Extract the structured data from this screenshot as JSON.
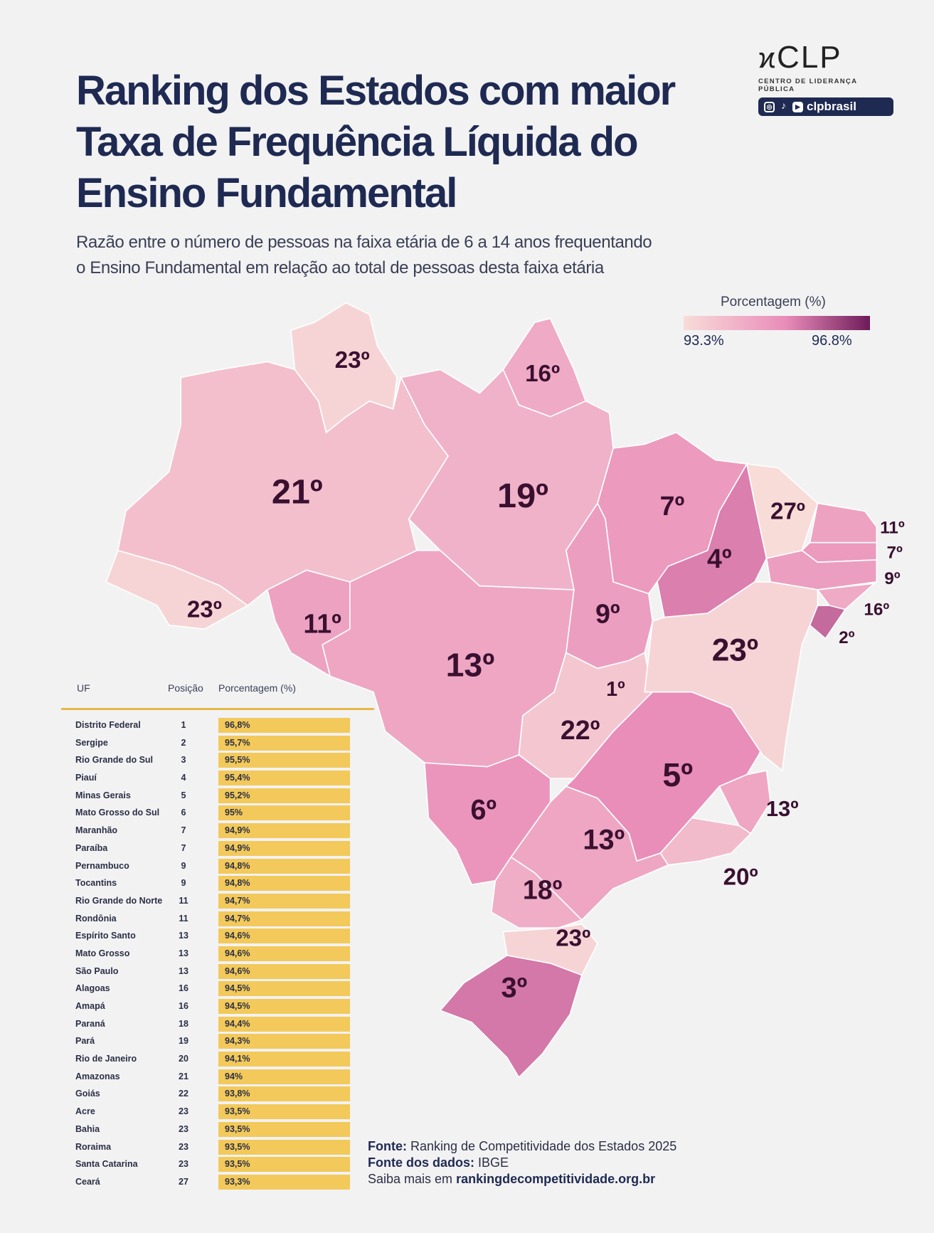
{
  "title_lines": [
    "Ranking dos Estados com maior",
    "Taxa de Frequência Líquida do",
    "Ensino Fundamental"
  ],
  "subtitle_lines": [
    "Razão entre o número de pessoas na faixa etária de 6 a 14 anos frequentando",
    "o Ensino Fundamental em relação ao total de pessoas desta faixa etária"
  ],
  "logo": {
    "text": "CLP",
    "org": "CENTRO DE LIDERANÇA PÚBLICA",
    "handle": "clpbrasil",
    "icons": [
      "instagram-icon",
      "tiktok-icon",
      "youtube-icon"
    ]
  },
  "legend": {
    "title": "Porcentagem (%)",
    "min_label": "93.3%",
    "max_label": "96.8%",
    "min_color": "#f8dcd8",
    "mid_color": "#e98cb9",
    "max_color": "#6d1b5a"
  },
  "table": {
    "headers": [
      "UF",
      "Posição",
      "Porcentagem (%)"
    ],
    "bar_color": "#f2c95a",
    "header_line_color": "#e8b948"
  },
  "footer": {
    "source_label": "Fonte:",
    "source": "Ranking de Competitividade dos Estados 2025",
    "data_label": "Fonte dos dados:",
    "data_source": "IBGE",
    "more_prefix": "Saiba mais em",
    "more_link": "rankingdecompetitividade.org.br"
  },
  "chart_data": {
    "type": "table",
    "title": "Ranking dos Estados com maior Taxa de Frequência Líquida do Ensino Fundamental",
    "columns": [
      "UF",
      "Posição",
      "Porcentagem (%)"
    ],
    "rows": [
      {
        "uf": "Distrito Federal",
        "code": "DF",
        "rank": 1,
        "pct": 96.8,
        "pct_label": "96,8%",
        "map_label": "1º"
      },
      {
        "uf": "Sergipe",
        "code": "SE",
        "rank": 2,
        "pct": 95.7,
        "pct_label": "95,7%",
        "map_label": "2º"
      },
      {
        "uf": "Rio Grande do Sul",
        "code": "RS",
        "rank": 3,
        "pct": 95.5,
        "pct_label": "95,5%",
        "map_label": "3º"
      },
      {
        "uf": "Piauí",
        "code": "PI",
        "rank": 4,
        "pct": 95.4,
        "pct_label": "95,4%",
        "map_label": "4º"
      },
      {
        "uf": "Minas Gerais",
        "code": "MG",
        "rank": 5,
        "pct": 95.2,
        "pct_label": "95,2%",
        "map_label": "5º"
      },
      {
        "uf": "Mato Grosso do Sul",
        "code": "MS",
        "rank": 6,
        "pct": 95.0,
        "pct_label": "95%",
        "map_label": "6º"
      },
      {
        "uf": "Maranhão",
        "code": "MA",
        "rank": 7,
        "pct": 94.9,
        "pct_label": "94,9%",
        "map_label": "7º"
      },
      {
        "uf": "Paraíba",
        "code": "PB",
        "rank": 7,
        "pct": 94.9,
        "pct_label": "94,9%",
        "map_label": "7º"
      },
      {
        "uf": "Pernambuco",
        "code": "PE",
        "rank": 9,
        "pct": 94.8,
        "pct_label": "94,8%",
        "map_label": "9º"
      },
      {
        "uf": "Tocantins",
        "code": "TO",
        "rank": 9,
        "pct": 94.8,
        "pct_label": "94,8%",
        "map_label": "9º"
      },
      {
        "uf": "Rio Grande do Norte",
        "code": "RN",
        "rank": 11,
        "pct": 94.7,
        "pct_label": "94,7%",
        "map_label": "11º"
      },
      {
        "uf": "Rondônia",
        "code": "RO",
        "rank": 11,
        "pct": 94.7,
        "pct_label": "94,7%",
        "map_label": "11º"
      },
      {
        "uf": "Espírito Santo",
        "code": "ES",
        "rank": 13,
        "pct": 94.6,
        "pct_label": "94,6%",
        "map_label": "13º"
      },
      {
        "uf": "Mato Grosso",
        "code": "MT",
        "rank": 13,
        "pct": 94.6,
        "pct_label": "94,6%",
        "map_label": "13º"
      },
      {
        "uf": "São Paulo",
        "code": "SP",
        "rank": 13,
        "pct": 94.6,
        "pct_label": "94,6%",
        "map_label": "13º"
      },
      {
        "uf": "Alagoas",
        "code": "AL",
        "rank": 16,
        "pct": 94.5,
        "pct_label": "94,5%",
        "map_label": "16º"
      },
      {
        "uf": "Amapá",
        "code": "AP",
        "rank": 16,
        "pct": 94.5,
        "pct_label": "94,5%",
        "map_label": "16º"
      },
      {
        "uf": "Paraná",
        "code": "PR",
        "rank": 18,
        "pct": 94.4,
        "pct_label": "94,4%",
        "map_label": "18º"
      },
      {
        "uf": "Pará",
        "code": "PA",
        "rank": 19,
        "pct": 94.3,
        "pct_label": "94,3%",
        "map_label": "19º"
      },
      {
        "uf": "Rio de Janeiro",
        "code": "RJ",
        "rank": 20,
        "pct": 94.1,
        "pct_label": "94,1%",
        "map_label": "20º"
      },
      {
        "uf": "Amazonas",
        "code": "AM",
        "rank": 21,
        "pct": 94.0,
        "pct_label": "94%",
        "map_label": "21º"
      },
      {
        "uf": "Goiás",
        "code": "GO",
        "rank": 22,
        "pct": 93.8,
        "pct_label": "93,8%",
        "map_label": "22º"
      },
      {
        "uf": "Acre",
        "code": "AC",
        "rank": 23,
        "pct": 93.5,
        "pct_label": "93,5%",
        "map_label": "23º"
      },
      {
        "uf": "Bahia",
        "code": "BA",
        "rank": 23,
        "pct": 93.5,
        "pct_label": "93,5%",
        "map_label": "23º"
      },
      {
        "uf": "Roraima",
        "code": "RR",
        "rank": 23,
        "pct": 93.5,
        "pct_label": "93,5%",
        "map_label": "23º"
      },
      {
        "uf": "Santa Catarina",
        "code": "SC",
        "rank": 23,
        "pct": 93.5,
        "pct_label": "93,5%",
        "map_label": "23º"
      },
      {
        "uf": "Ceará",
        "code": "CE",
        "rank": 27,
        "pct": 93.3,
        "pct_label": "93,3%",
        "map_label": "27º"
      }
    ],
    "color_scale": {
      "min": 93.3,
      "max": 96.8
    }
  }
}
